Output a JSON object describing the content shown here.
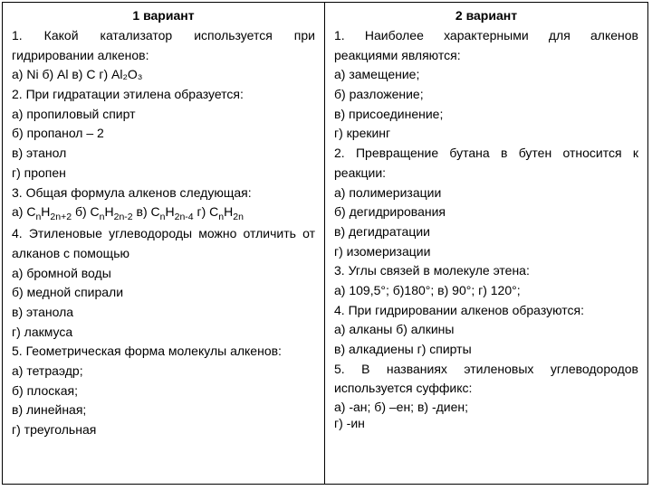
{
  "v1": {
    "title": "1 вариант",
    "q1": "1. Какой катализатор используется при гидрировании алкенов:",
    "q1opts": "а) Ni б) Al в) C г) Al₂O₃",
    "q2": "2. При гидратации этилена образуется:",
    "q2a": "а) пропиловый спирт",
    "q2b": "б) пропанол – 2",
    "q2c": "в) этанол",
    "q2d": "г) пропен",
    "q3": "3. Общая формула алкенов следующая:",
    "q3opts_html": "а)  C<sub>n</sub>H<sub>2n+2</sub>  б) C<sub>n</sub>H<sub>2n-2</sub>   в) C<sub>n</sub>H<sub>2n-4</sub>   г) C<sub>n</sub>H<sub>2n</sub>",
    "q4": "4. Этиленовые углеводороды можно отличить от алканов с помощью",
    "q4a": "а) бромной воды",
    "q4b": "б) медной спирали",
    "q4c": "в) этанола",
    "q4d": "г) лакмуса",
    "q5": "5. Геометрическая форма молекулы алкенов:",
    "q5a": "а) тетраэдр;",
    "q5b": "б) плоская;",
    "q5c": "в) линейная;",
    "q5d": "г) треугольная"
  },
  "v2": {
    "title": "2 вариант",
    "q1": "1. Наиболее характерными для алкенов реакциями являются:",
    "q1a": "а) замещение;",
    "q1b": "б) разложение;",
    "q1c": "в) присоединение;",
    "q1d": "г) крекинг",
    "q2": "2. Превращение бутана в бутен относится к реакции:",
    "q2a": "а) полимеризации",
    "q2b": "б) дегидрирования",
    "q2c": "в) дегидратации",
    "q2d": "г) изомеризации",
    "q3": "3. Углы связей в молекуле этена:",
    "q3opts": "а) 109,5°;     б)180°;      в) 90°;       г) 120°;",
    "q4": "4.  При гидрировании  алкенов образуются:",
    "q4ab": "а) алканы         б) алкины",
    "q4cd": "в) алкадиены          г) спирты",
    "q5": "5. В названиях этиленовых углеводородов используется суффикс:",
    "q5abc": "а) -ан;     б) –ен;  в) -диен;",
    "q5d": "г) -ин"
  }
}
